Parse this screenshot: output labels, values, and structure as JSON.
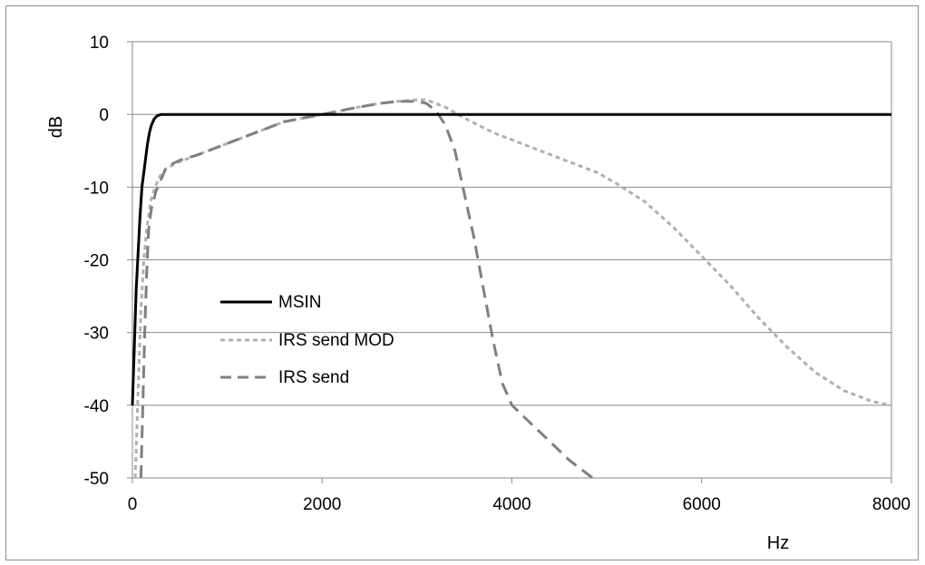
{
  "chart_data": {
    "type": "line",
    "title": "",
    "xlabel": "Hz",
    "ylabel": "dB",
    "xlim": [
      0,
      8000
    ],
    "ylim": [
      -50,
      10
    ],
    "x_ticks": [
      0,
      2000,
      4000,
      6000,
      8000
    ],
    "y_ticks": [
      10,
      0,
      -10,
      -20,
      -30,
      -40,
      -50
    ],
    "grid": "horizontal",
    "legend_position": "left-middle",
    "series": [
      {
        "name": "MSIN",
        "color": "#000000",
        "style": "solid",
        "points": [
          [
            0,
            -40
          ],
          [
            20,
            -32
          ],
          [
            40,
            -24
          ],
          [
            60,
            -19
          ],
          [
            80,
            -14
          ],
          [
            100,
            -10
          ],
          [
            120,
            -8
          ],
          [
            140,
            -6
          ],
          [
            160,
            -4
          ],
          [
            180,
            -2.5
          ],
          [
            200,
            -1.5
          ],
          [
            230,
            -0.6
          ],
          [
            260,
            -0.2
          ],
          [
            300,
            0
          ],
          [
            500,
            0
          ],
          [
            1000,
            0
          ],
          [
            2000,
            0
          ],
          [
            3000,
            0
          ],
          [
            4000,
            0
          ],
          [
            5000,
            0
          ],
          [
            6000,
            0
          ],
          [
            7000,
            0
          ],
          [
            8000,
            0
          ]
        ]
      },
      {
        "name": "IRS send MOD",
        "color": "#b0b0b0",
        "style": "dotted",
        "points": [
          [
            30,
            -50
          ],
          [
            60,
            -38
          ],
          [
            90,
            -27
          ],
          [
            120,
            -20
          ],
          [
            150,
            -16
          ],
          [
            190,
            -12
          ],
          [
            240,
            -10
          ],
          [
            290,
            -8.5
          ],
          [
            350,
            -7.5
          ],
          [
            420,
            -7
          ],
          [
            500,
            -6.5
          ],
          [
            700,
            -5.5
          ],
          [
            1000,
            -4
          ],
          [
            1300,
            -2.5
          ],
          [
            1600,
            -1
          ],
          [
            2000,
            0
          ],
          [
            2300,
            0.8
          ],
          [
            2600,
            1.5
          ],
          [
            2800,
            1.8
          ],
          [
            3000,
            2
          ],
          [
            3100,
            2
          ],
          [
            3300,
            1
          ],
          [
            3500,
            -0.5
          ],
          [
            3800,
            -2.5
          ],
          [
            4000,
            -3.5
          ],
          [
            4300,
            -5
          ],
          [
            4600,
            -6.5
          ],
          [
            4900,
            -8
          ],
          [
            5100,
            -9.5
          ],
          [
            5400,
            -12
          ],
          [
            5700,
            -15.5
          ],
          [
            6000,
            -19.5
          ],
          [
            6300,
            -23.5
          ],
          [
            6600,
            -28
          ],
          [
            6900,
            -32
          ],
          [
            7200,
            -35.5
          ],
          [
            7500,
            -38
          ],
          [
            7800,
            -39.5
          ],
          [
            8000,
            -40
          ]
        ]
      },
      {
        "name": "IRS send",
        "color": "#808080",
        "style": "dashed",
        "points": [
          [
            90,
            -50
          ],
          [
            110,
            -40
          ],
          [
            130,
            -30
          ],
          [
            150,
            -22
          ],
          [
            170,
            -16
          ],
          [
            200,
            -13
          ],
          [
            250,
            -10.5
          ],
          [
            300,
            -9
          ],
          [
            350,
            -7.5
          ],
          [
            420,
            -6.8
          ],
          [
            500,
            -6.3
          ],
          [
            700,
            -5.5
          ],
          [
            1000,
            -4
          ],
          [
            1300,
            -2.5
          ],
          [
            1600,
            -1
          ],
          [
            2000,
            0
          ],
          [
            2300,
            0.8
          ],
          [
            2600,
            1.5
          ],
          [
            2800,
            1.8
          ],
          [
            3000,
            1.8
          ],
          [
            3100,
            1.5
          ],
          [
            3200,
            0.5
          ],
          [
            3300,
            -1.5
          ],
          [
            3400,
            -5
          ],
          [
            3500,
            -11
          ],
          [
            3600,
            -17
          ],
          [
            3700,
            -24
          ],
          [
            3800,
            -31
          ],
          [
            3900,
            -37
          ],
          [
            4000,
            -40
          ],
          [
            4200,
            -42.5
          ],
          [
            4400,
            -45
          ],
          [
            4600,
            -47.5
          ],
          [
            4800,
            -49.5
          ],
          [
            4850,
            -50
          ]
        ]
      }
    ]
  }
}
